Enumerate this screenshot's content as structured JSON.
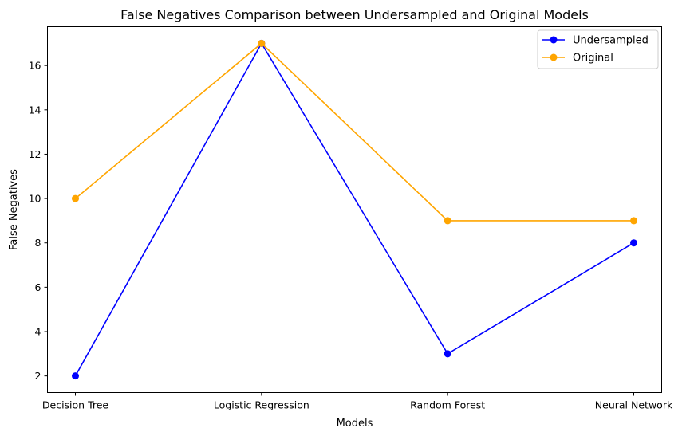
{
  "chart_data": {
    "type": "line",
    "title": "False Negatives Comparison between Undersampled and Original Models",
    "xlabel": "Models",
    "ylabel": "False Negatives",
    "categories": [
      "Decision Tree",
      "Logistic Regression",
      "Random Forest",
      "Neural Network"
    ],
    "series": [
      {
        "name": "Undersampled",
        "values": [
          2,
          17,
          3,
          8
        ],
        "color": "#0000ff",
        "marker": "circle"
      },
      {
        "name": "Original",
        "values": [
          10,
          17,
          9,
          9
        ],
        "color": "#ffa500",
        "marker": "circle"
      }
    ],
    "ylim": [
      1.25,
      17.75
    ],
    "yticks": [
      2,
      4,
      6,
      8,
      10,
      12,
      14,
      16
    ],
    "grid": false,
    "legend_position": "top-right"
  }
}
